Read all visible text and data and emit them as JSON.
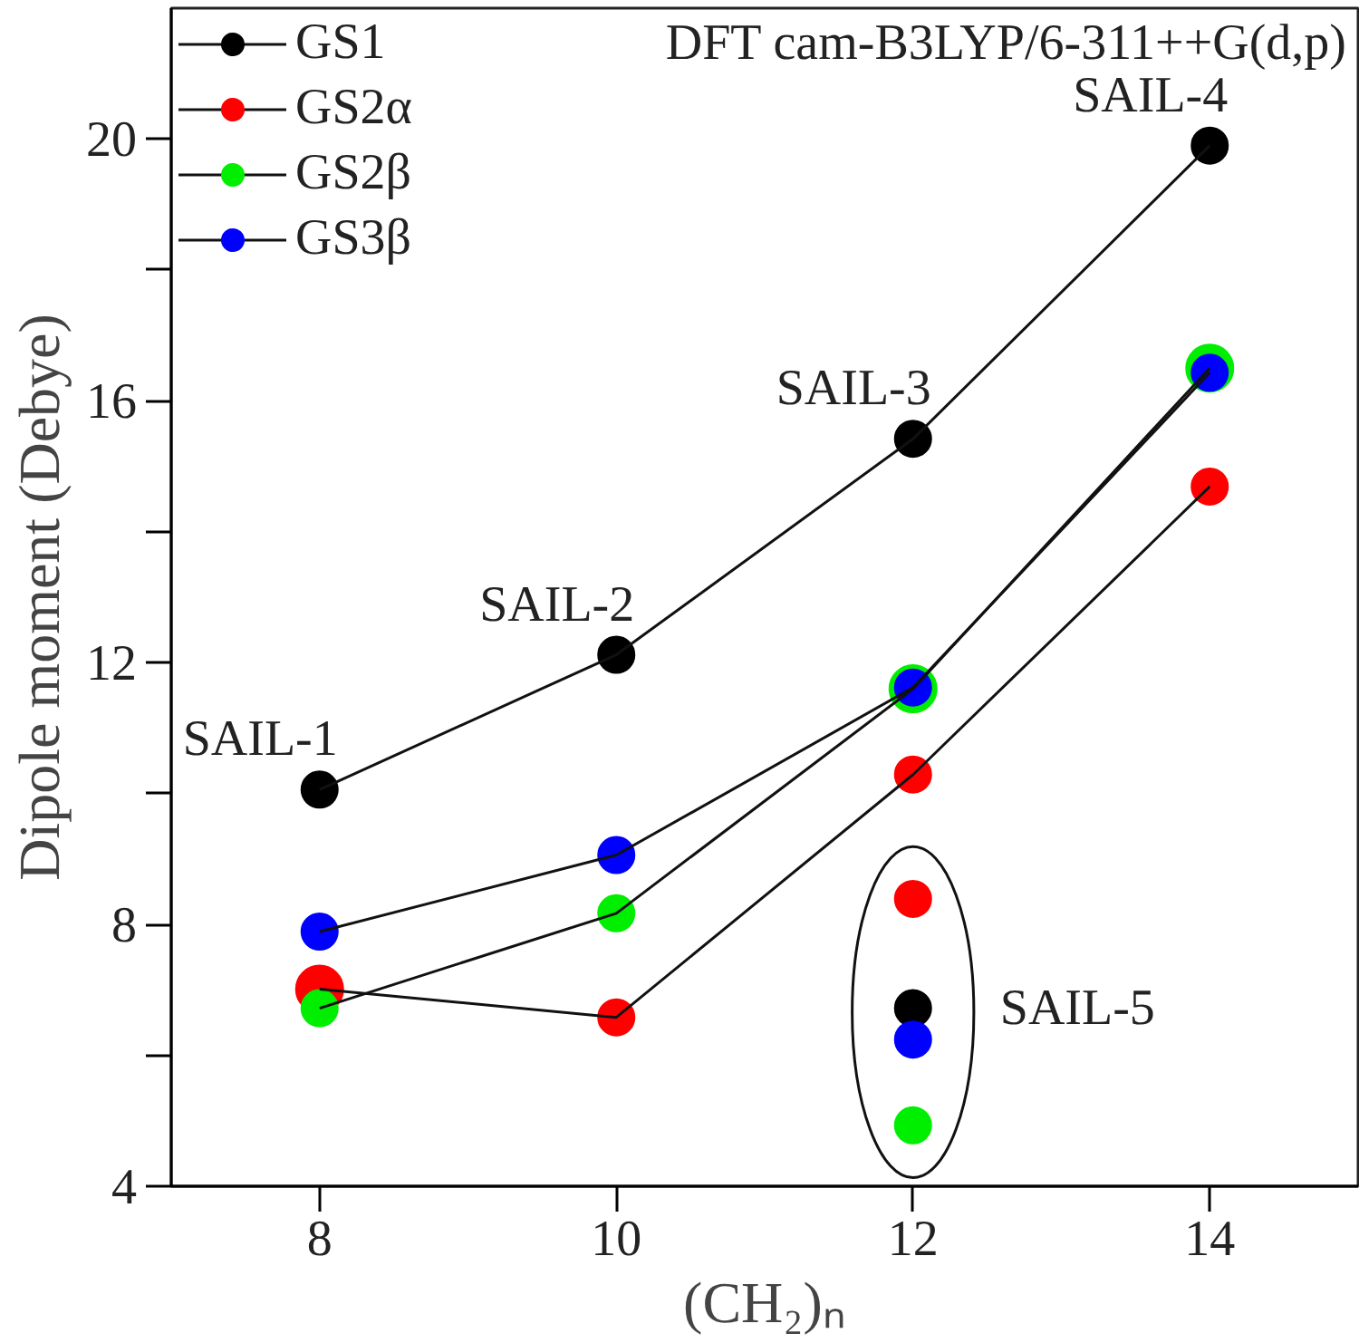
{
  "chart_data": {
    "type": "line",
    "xlabel": "(CH₂)ₙ",
    "ylabel": "Dipole moment (Debye)",
    "x": [
      8,
      10,
      12,
      14
    ],
    "series": [
      {
        "name": "GS1",
        "color": "#000000",
        "values": [
          10.06,
          12.12,
          15.42,
          19.9
        ]
      },
      {
        "name": "GS2α",
        "color": "#ff0000",
        "values": [
          7.01,
          6.58,
          10.29,
          14.69
        ]
      },
      {
        "name": "GS2β",
        "color": "#00ee00",
        "values": [
          6.72,
          8.17,
          11.6,
          16.5
        ]
      },
      {
        "name": "GS3β",
        "color": "#0000ff",
        "values": [
          7.89,
          9.06,
          11.62,
          16.43
        ]
      },
      {
        "type": "scatter",
        "color": "#ff0000",
        "values": [
          null,
          null,
          8.39,
          null
        ]
      },
      {
        "type": "scatter",
        "color": "#000000",
        "values": [
          null,
          null,
          6.72,
          null
        ]
      },
      {
        "type": "scatter",
        "color": "#0000ff",
        "values": [
          null,
          null,
          6.24,
          null
        ]
      },
      {
        "type": "scatter",
        "color": "#00ee00",
        "values": [
          null,
          null,
          4.93,
          null
        ]
      }
    ],
    "annotations": [
      "DFT cam-B3LYP/6-311++G(d,p)",
      {
        "text": "SAIL-1",
        "x": 8,
        "y": 10.06
      },
      {
        "text": "SAIL-2",
        "x": 10,
        "y": 12.12
      },
      {
        "text": "SAIL-3",
        "x": 12,
        "y": 15.42
      },
      {
        "text": "SAIL-4",
        "x": 14,
        "y": 19.9
      },
      {
        "text": "SAIL-5",
        "x": 12,
        "y": 6.72
      }
    ],
    "xlim": [
      7,
      15
    ],
    "ylim": [
      4,
      22
    ],
    "xticks": [
      8,
      10,
      12,
      14
    ],
    "yticks": [
      4,
      {
        "value": 6,
        "label": null
      },
      8,
      {
        "value": 10,
        "label": null
      },
      12,
      {
        "value": 14,
        "label": null
      },
      16,
      {
        "value": 18,
        "label": null
      },
      20
    ],
    "marker": "circle",
    "line_style": "solid",
    "grid": false,
    "legend": "top left"
  }
}
